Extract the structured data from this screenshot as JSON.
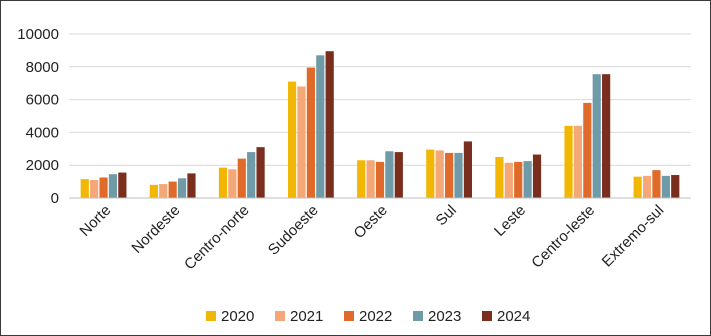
{
  "chart_data": {
    "type": "bar",
    "title": "",
    "xlabel": "",
    "ylabel": "",
    "ylim": [
      0,
      10000
    ],
    "yticks": [
      0,
      2000,
      4000,
      6000,
      8000,
      10000
    ],
    "grid": true,
    "legend_position": "bottom",
    "categories": [
      "Norte",
      "Nordeste",
      "Centro-norte",
      "Sudoeste",
      "Oeste",
      "Sul",
      "Leste",
      "Centro-leste",
      "Extremo-sul"
    ],
    "series": [
      {
        "name": "2020",
        "color": "#f2b705",
        "values": [
          1150,
          800,
          1850,
          7100,
          2300,
          2950,
          2500,
          4400,
          1300
        ]
      },
      {
        "name": "2021",
        "color": "#f4a877",
        "values": [
          1100,
          850,
          1750,
          6800,
          2300,
          2900,
          2150,
          4400,
          1350
        ]
      },
      {
        "name": "2022",
        "color": "#e06a2a",
        "values": [
          1250,
          1000,
          2400,
          7950,
          2200,
          2750,
          2200,
          5800,
          1700
        ]
      },
      {
        "name": "2023",
        "color": "#6f9aa8",
        "values": [
          1450,
          1200,
          2800,
          8700,
          2850,
          2750,
          2250,
          7550,
          1350
        ]
      },
      {
        "name": "2024",
        "color": "#7a2e1d",
        "values": [
          1550,
          1500,
          3100,
          8950,
          2800,
          3450,
          2650,
          7550,
          1400
        ]
      }
    ]
  }
}
